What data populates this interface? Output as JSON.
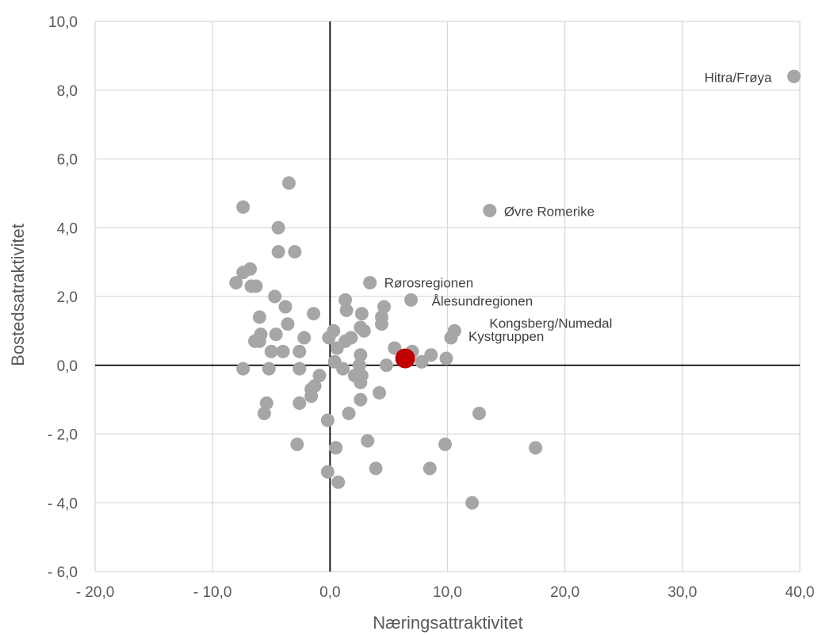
{
  "chart_data": {
    "type": "scatter",
    "xlabel": "Næringsattraktivitet",
    "ylabel": "Bostedsatraktivitet",
    "xlim": [
      -20,
      40
    ],
    "ylim": [
      -6,
      10
    ],
    "x_ticks": [
      -20,
      -10,
      0,
      10,
      20,
      30,
      40
    ],
    "y_ticks": [
      -6,
      -4,
      -2,
      0,
      2,
      4,
      6,
      8,
      10
    ],
    "x_tick_labels": [
      "- 20,0",
      "- 10,0",
      "0,0",
      "10,0",
      "20,0",
      "30,0",
      "40,0"
    ],
    "y_tick_labels": [
      "- 6,0",
      "- 4,0",
      "- 2,0",
      "0,0",
      "2,0",
      "4,0",
      "6,0",
      "8,0",
      "10,0"
    ],
    "grid": true,
    "colors": {
      "point": "#a6a6a6",
      "highlight": "#c00000",
      "grid": "#d9d9d9",
      "axis_zero": "#000000",
      "text": "#595959"
    },
    "highlight": {
      "x": 6.4,
      "y": 0.2
    },
    "labeled_points": [
      {
        "x": 39.5,
        "y": 8.4,
        "label": "Hitra/Frøya",
        "position": "left"
      },
      {
        "x": 13.6,
        "y": 4.5,
        "label": "Øvre Romerike",
        "position": "right"
      },
      {
        "x": 3.4,
        "y": 2.4,
        "label": "Rørosregionen",
        "position": "right"
      },
      {
        "x": 6.9,
        "y": 1.9,
        "label": "Ålesundregionen",
        "position": "right"
      },
      {
        "x": 10.6,
        "y": 1.0,
        "label": "Kongsberg/Numedal",
        "position": "right"
      },
      {
        "x": 10.3,
        "y": 0.8,
        "label": "Kystgruppen",
        "position": "right"
      }
    ],
    "points": [
      [
        -7.4,
        4.6
      ],
      [
        -3.5,
        5.3
      ],
      [
        -4.4,
        4.0
      ],
      [
        -4.4,
        3.3
      ],
      [
        -3.0,
        3.3
      ],
      [
        -7.4,
        2.7
      ],
      [
        -6.8,
        2.8
      ],
      [
        -8.0,
        2.4
      ],
      [
        -6.7,
        2.3
      ],
      [
        -6.3,
        2.3
      ],
      [
        -4.7,
        2.0
      ],
      [
        -3.8,
        1.7
      ],
      [
        -6.0,
        1.4
      ],
      [
        -3.6,
        1.2
      ],
      [
        -4.6,
        0.9
      ],
      [
        -5.9,
        0.9
      ],
      [
        -1.4,
        1.5
      ],
      [
        -6.4,
        0.7
      ],
      [
        -6.0,
        0.7
      ],
      [
        -2.2,
        0.8
      ],
      [
        -4.0,
        0.4
      ],
      [
        -5.0,
        0.4
      ],
      [
        -2.6,
        0.4
      ],
      [
        -7.4,
        -0.1
      ],
      [
        -5.2,
        -0.1
      ],
      [
        -2.6,
        -0.1
      ],
      [
        -0.9,
        -0.3
      ],
      [
        -1.3,
        -0.6
      ],
      [
        -1.6,
        -0.9
      ],
      [
        -1.6,
        -0.7
      ],
      [
        -2.6,
        -1.1
      ],
      [
        -5.4,
        -1.1
      ],
      [
        -5.6,
        -1.4
      ],
      [
        -2.8,
        -2.3
      ],
      [
        -0.2,
        -1.6
      ],
      [
        0.5,
        -2.4
      ],
      [
        -0.2,
        -3.1
      ],
      [
        0.7,
        -3.4
      ],
      [
        0.3,
        1.0
      ],
      [
        -0.1,
        0.8
      ],
      [
        0.6,
        0.5
      ],
      [
        1.3,
        0.7
      ],
      [
        1.8,
        0.8
      ],
      [
        1.4,
        1.6
      ],
      [
        1.3,
        1.9
      ],
      [
        2.7,
        1.5
      ],
      [
        2.9,
        1.0
      ],
      [
        2.6,
        1.1
      ],
      [
        4.4,
        1.4
      ],
      [
        4.6,
        1.7
      ],
      [
        4.4,
        1.2
      ],
      [
        0.4,
        0.1
      ],
      [
        1.1,
        -0.1
      ],
      [
        2.6,
        0.3
      ],
      [
        2.5,
        0.0
      ],
      [
        2.1,
        -0.3
      ],
      [
        2.7,
        -0.3
      ],
      [
        2.6,
        -0.5
      ],
      [
        1.6,
        -1.4
      ],
      [
        2.6,
        -1.0
      ],
      [
        4.2,
        -0.8
      ],
      [
        3.2,
        -2.2
      ],
      [
        3.9,
        -3.0
      ],
      [
        4.8,
        0.0
      ],
      [
        5.5,
        0.5
      ],
      [
        7.0,
        0.4
      ],
      [
        7.8,
        0.1
      ],
      [
        8.6,
        0.3
      ],
      [
        9.9,
        0.2
      ],
      [
        12.7,
        -1.4
      ],
      [
        9.8,
        -2.3
      ],
      [
        8.5,
        -3.0
      ],
      [
        12.1,
        -4.0
      ],
      [
        17.5,
        -2.4
      ]
    ]
  }
}
